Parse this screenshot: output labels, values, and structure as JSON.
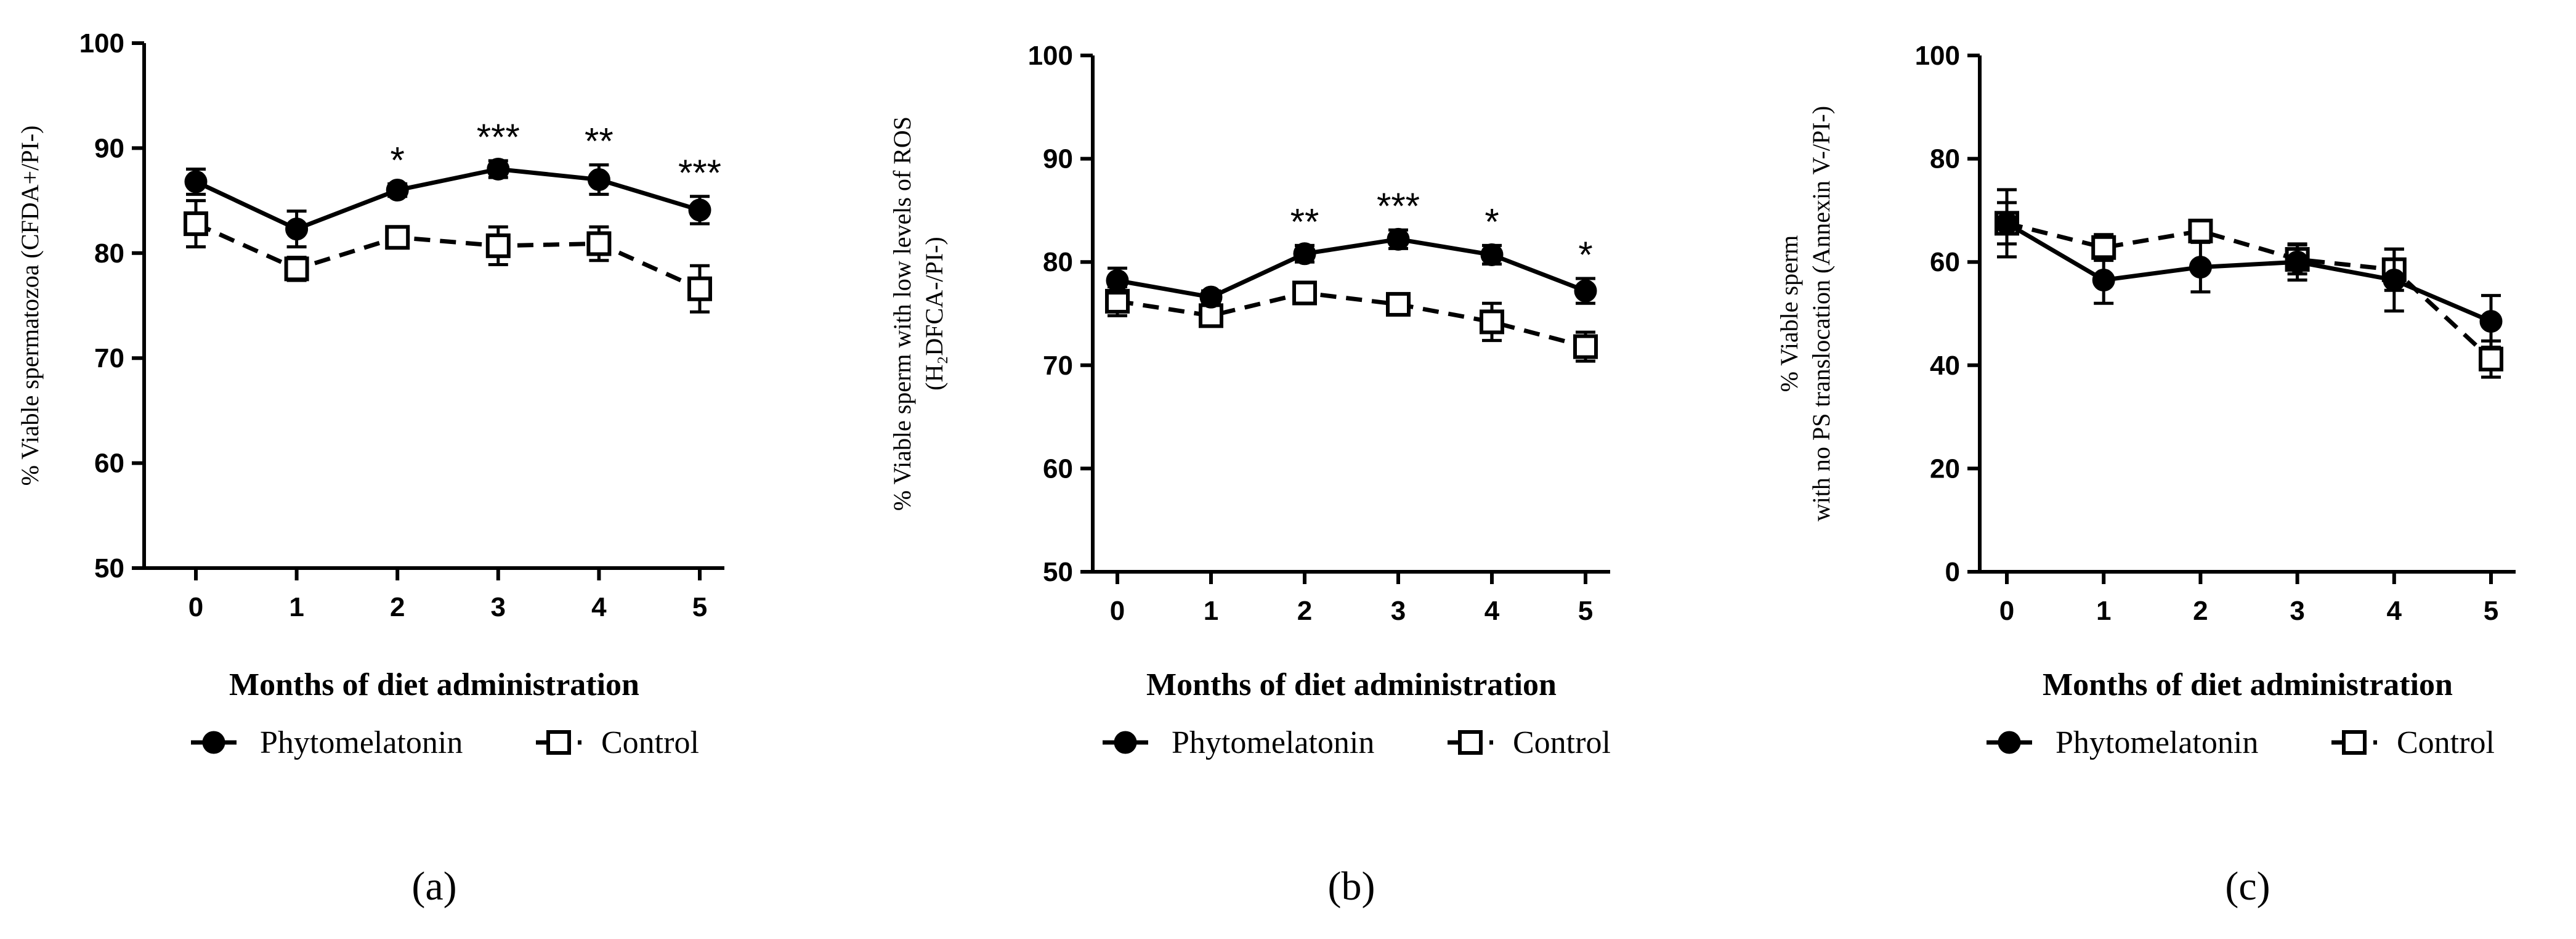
{
  "legend": {
    "series1": "Phytomelatonin",
    "series2": "Control"
  },
  "chart_data": [
    {
      "type": "line",
      "panel_label": "(a)",
      "xlabel": "Months of diet administration",
      "ylabel_lines": [
        "% Viable spermatozoa (CFDA+/PI-)"
      ],
      "x": [
        0,
        1,
        2,
        3,
        4,
        5
      ],
      "ylim": [
        50,
        100
      ],
      "yticks": [
        50,
        60,
        70,
        80,
        90,
        100
      ],
      "series": [
        {
          "name": "Phytomelatonin",
          "values": [
            86.8,
            82.3,
            86.0,
            88.0,
            87.0,
            84.1
          ],
          "errors": [
            1.2,
            1.7,
            0.6,
            0.8,
            1.4,
            1.3
          ]
        },
        {
          "name": "Control",
          "values": [
            82.8,
            78.5,
            81.5,
            80.7,
            80.9,
            76.6
          ],
          "errors": [
            2.2,
            1.1,
            0.9,
            1.8,
            1.6,
            2.2
          ]
        }
      ],
      "significance": [
        {
          "x": 2,
          "label": "*"
        },
        {
          "x": 3,
          "label": "***"
        },
        {
          "x": 4,
          "label": "**"
        },
        {
          "x": 5,
          "label": "***"
        }
      ]
    },
    {
      "type": "line",
      "panel_label": "(b)",
      "xlabel": "Months of diet administration",
      "ylabel_lines": [
        "% Viable sperm with low levels of ROS",
        "(H₂DFCA-/PI-)"
      ],
      "x": [
        0,
        1,
        2,
        3,
        4,
        5
      ],
      "ylim": [
        50,
        100
      ],
      "yticks": [
        50,
        60,
        70,
        80,
        90,
        100
      ],
      "series": [
        {
          "name": "Phytomelatonin",
          "values": [
            78.2,
            76.6,
            80.8,
            82.2,
            80.7,
            77.2
          ],
          "errors": [
            1.2,
            0.6,
            0.8,
            0.9,
            0.9,
            1.2
          ]
        },
        {
          "name": "Control",
          "values": [
            76.2,
            74.8,
            77.0,
            75.9,
            74.2,
            71.8
          ],
          "errors": [
            1.4,
            0.9,
            0.9,
            1.0,
            1.8,
            1.4
          ]
        }
      ],
      "significance": [
        {
          "x": 2,
          "label": "**"
        },
        {
          "x": 3,
          "label": "***"
        },
        {
          "x": 4,
          "label": "*"
        },
        {
          "x": 5,
          "label": "*"
        }
      ]
    },
    {
      "type": "line",
      "panel_label": "(c)",
      "xlabel": "Months of diet administration",
      "ylabel_lines": [
        "% Viable sperm",
        "with no PS translocation (Annexin V-/PI-)"
      ],
      "x": [
        0,
        1,
        2,
        3,
        4,
        5
      ],
      "ylim": [
        0,
        100
      ],
      "yticks": [
        0,
        20,
        40,
        60,
        80,
        100
      ],
      "series": [
        {
          "name": "Phytomelatonin",
          "values": [
            67.5,
            56.5,
            59.0,
            60.0,
            56.5,
            48.5
          ],
          "errors": [
            6.5,
            4.5,
            4.8,
            3.5,
            6.0,
            5.0
          ]
        },
        {
          "name": "Control",
          "values": [
            67.5,
            62.8,
            66.0,
            60.5,
            58.5,
            41.2
          ],
          "errors": [
            4.0,
            2.5,
            2.0,
            2.8,
            4.0,
            3.5
          ]
        }
      ],
      "significance": []
    }
  ]
}
